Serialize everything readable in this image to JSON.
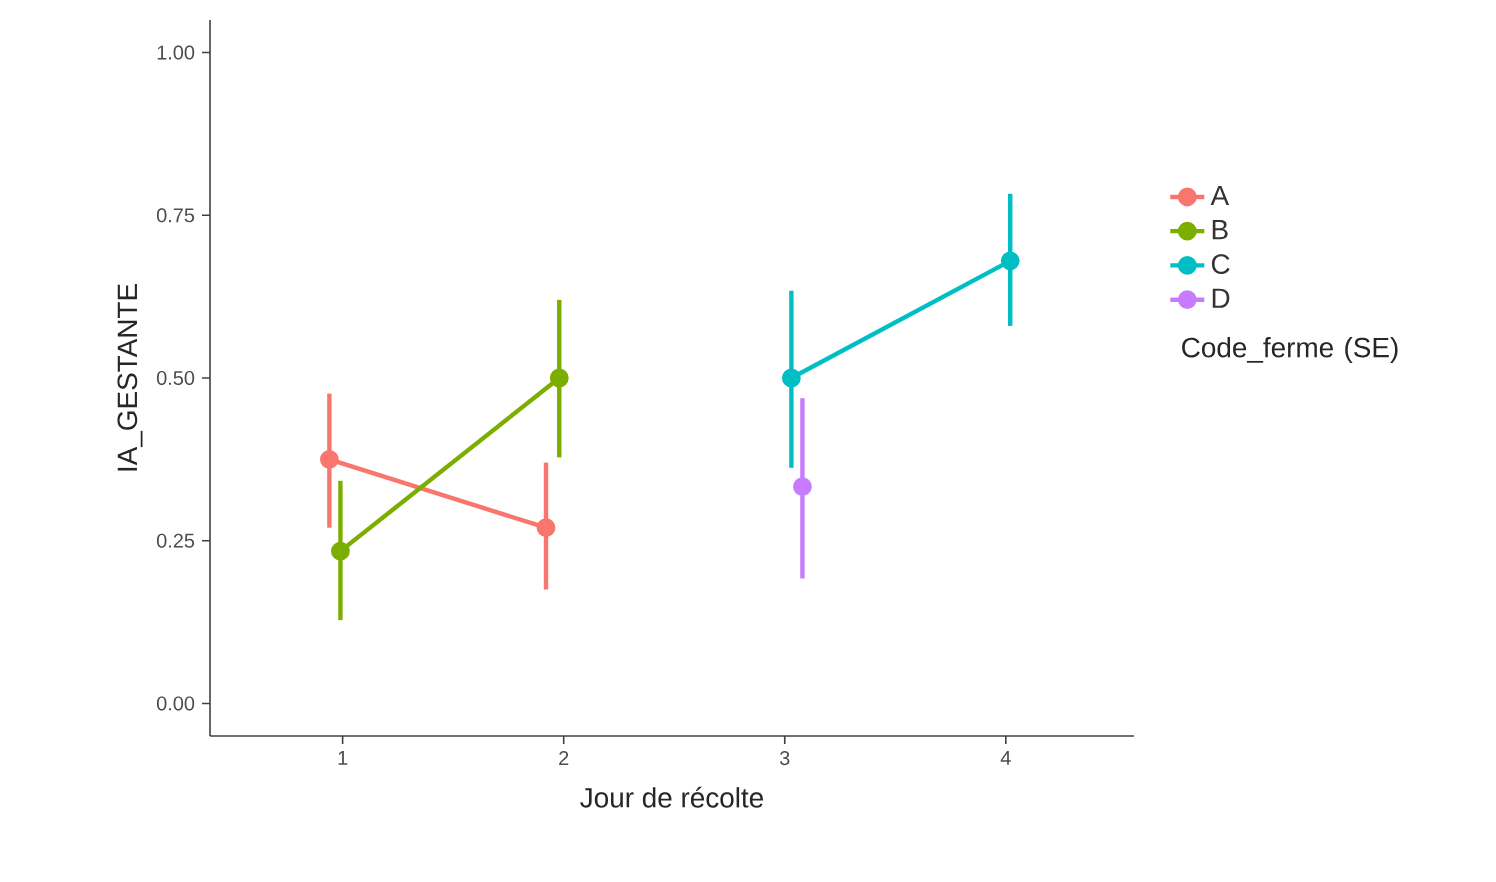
{
  "chart_data": {
    "type": "line",
    "xlabel": "Jour de récolte",
    "ylabel": "IA_GESTANTE",
    "legend_title": "Code_ferme (SE)",
    "xlim": [
      0.4,
      4.58
    ],
    "ylim": [
      -0.05,
      1.05
    ],
    "xticks": [
      1,
      2,
      3,
      4
    ],
    "yticks": [
      {
        "value": 0,
        "label": "0.00"
      },
      {
        "value": 0.25,
        "label": "0.25"
      },
      {
        "value": 0.5,
        "label": "0.50"
      },
      {
        "value": 0.75,
        "label": "0.75"
      },
      {
        "value": 1,
        "label": "1.00"
      }
    ],
    "grid": false,
    "legend": "right",
    "marker": "circle",
    "line_style": "solid",
    "series": [
      {
        "name": "A",
        "color": "#f8766d",
        "x": [
          0.94,
          1.92
        ],
        "values": [
          0.375,
          0.27
        ],
        "errors": [
          [
            0.27,
            0.476
          ],
          [
            0.175,
            0.37
          ]
        ]
      },
      {
        "name": "B",
        "color": "#7cae00",
        "x": [
          0.99,
          1.98
        ],
        "values": [
          0.234,
          0.5
        ],
        "errors": [
          [
            0.128,
            0.342
          ],
          [
            0.378,
            0.62
          ]
        ]
      },
      {
        "name": "C",
        "color": "#00bfc4",
        "x": [
          3.03,
          4.02
        ],
        "values": [
          0.5,
          0.68
        ],
        "errors": [
          [
            0.362,
            0.634
          ],
          [
            0.58,
            0.783
          ]
        ]
      },
      {
        "name": "D",
        "color": "#c77cff",
        "x": [
          3.08
        ],
        "values": [
          0.333
        ],
        "errors": [
          [
            0.192,
            0.469
          ]
        ]
      }
    ]
  }
}
